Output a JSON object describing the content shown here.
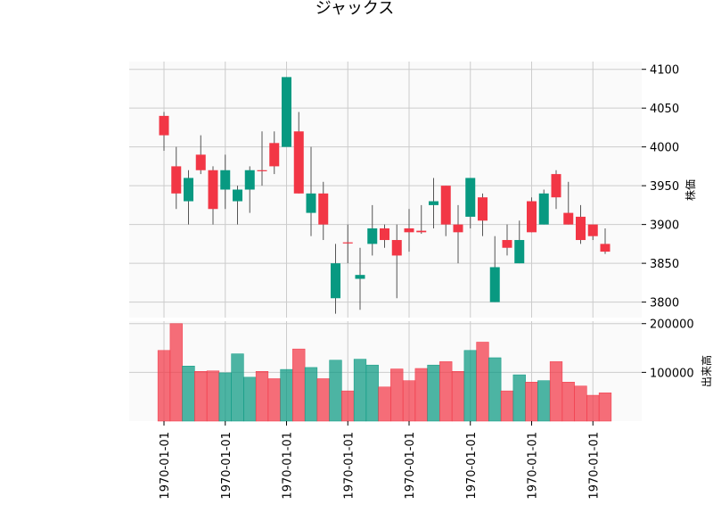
{
  "chart_data": {
    "type": "candlestick",
    "title": "ジャックス",
    "up_color": "#089981",
    "down_color": "#f23645",
    "x_tick_labels": [
      "1970-01-01",
      "1970-01-01",
      "1970-01-01",
      "1970-01-01",
      "1970-01-01",
      "1970-01-01",
      "1970-01-01",
      "1970-01-01"
    ],
    "price_panel": {
      "ylabel": "株価",
      "ylim": [
        3780,
        4110
      ],
      "yticks": [
        3800,
        3850,
        3900,
        3950,
        4000,
        4050,
        4100
      ],
      "grid": true
    },
    "volume_panel": {
      "ylabel": "出来高",
      "ylim": [
        0,
        205000
      ],
      "ytick_labels": [
        {
          "value": 100000,
          "label": "100000"
        },
        {
          "value": 200000,
          "label": "200000"
        }
      ],
      "grid": true
    },
    "candles": [
      {
        "open": 4040,
        "high": 4045,
        "low": 3995,
        "close": 4015,
        "volume": 145000
      },
      {
        "open": 3975,
        "high": 4000,
        "low": 3920,
        "close": 3940,
        "volume": 200000
      },
      {
        "open": 3930,
        "high": 3970,
        "low": 3900,
        "close": 3960,
        "volume": 113000
      },
      {
        "open": 3990,
        "high": 4015,
        "low": 3965,
        "close": 3970,
        "volume": 102000
      },
      {
        "open": 3970,
        "high": 3975,
        "low": 3900,
        "close": 3920,
        "volume": 103000
      },
      {
        "open": 3945,
        "high": 3990,
        "low": 3920,
        "close": 3970,
        "volume": 99000
      },
      {
        "open": 3930,
        "high": 3950,
        "low": 3900,
        "close": 3945,
        "volume": 138000
      },
      {
        "open": 3945,
        "high": 3975,
        "low": 3915,
        "close": 3970,
        "volume": 90000
      },
      {
        "open": 3970,
        "high": 4020,
        "low": 3950,
        "close": 3969,
        "volume": 102000
      },
      {
        "open": 4005,
        "high": 4020,
        "low": 3965,
        "close": 3975,
        "volume": 87000
      },
      {
        "open": 4000,
        "high": 4090,
        "low": 4000,
        "close": 4090,
        "volume": 106000
      },
      {
        "open": 4020,
        "high": 4045,
        "low": 3940,
        "close": 3940,
        "volume": 148000
      },
      {
        "open": 3915,
        "high": 4000,
        "low": 3885,
        "close": 3940,
        "volume": 110000
      },
      {
        "open": 3940,
        "high": 3955,
        "low": 3880,
        "close": 3900,
        "volume": 87000
      },
      {
        "open": 3805,
        "high": 3875,
        "low": 3785,
        "close": 3850,
        "volume": 125000
      },
      {
        "open": 3877,
        "high": 3900,
        "low": 3850,
        "close": 3876,
        "volume": 62000
      },
      {
        "open": 3830,
        "high": 3870,
        "low": 3790,
        "close": 3835,
        "volume": 127000
      },
      {
        "open": 3875,
        "high": 3925,
        "low": 3860,
        "close": 3895,
        "volume": 115000
      },
      {
        "open": 3895,
        "high": 3900,
        "low": 3870,
        "close": 3880,
        "volume": 70000
      },
      {
        "open": 3880,
        "high": 3900,
        "low": 3805,
        "close": 3860,
        "volume": 107000
      },
      {
        "open": 3895,
        "high": 3920,
        "low": 3865,
        "close": 3890,
        "volume": 83000
      },
      {
        "open": 3892,
        "high": 3925,
        "low": 3888,
        "close": 3890,
        "volume": 108000
      },
      {
        "open": 3925,
        "high": 3960,
        "low": 3895,
        "close": 3930,
        "volume": 115000
      },
      {
        "open": 3950,
        "high": 3950,
        "low": 3885,
        "close": 3900,
        "volume": 122000
      },
      {
        "open": 3900,
        "high": 3925,
        "low": 3850,
        "close": 3890,
        "volume": 102000
      },
      {
        "open": 3910,
        "high": 3960,
        "low": 3895,
        "close": 3960,
        "volume": 145000
      },
      {
        "open": 3935,
        "high": 3940,
        "low": 3885,
        "close": 3905,
        "volume": 162000
      },
      {
        "open": 3800,
        "high": 3885,
        "low": 3800,
        "close": 3845,
        "volume": 130000
      },
      {
        "open": 3880,
        "high": 3900,
        "low": 3860,
        "close": 3870,
        "volume": 62000
      },
      {
        "open": 3850,
        "high": 3905,
        "low": 3850,
        "close": 3880,
        "volume": 95000
      },
      {
        "open": 3930,
        "high": 3935,
        "low": 3890,
        "close": 3890,
        "volume": 80000
      },
      {
        "open": 3900,
        "high": 3945,
        "low": 3900,
        "close": 3940,
        "volume": 83000
      },
      {
        "open": 3965,
        "high": 3970,
        "low": 3920,
        "close": 3935,
        "volume": 122000
      },
      {
        "open": 3915,
        "high": 3955,
        "low": 3900,
        "close": 3900,
        "volume": 80000
      },
      {
        "open": 3910,
        "high": 3925,
        "low": 3875,
        "close": 3880,
        "volume": 72000
      },
      {
        "open": 3900,
        "high": 3900,
        "low": 3880,
        "close": 3885,
        "volume": 53000
      },
      {
        "open": 3875,
        "high": 3895,
        "low": 3862,
        "close": 3865,
        "volume": 58000
      }
    ]
  }
}
